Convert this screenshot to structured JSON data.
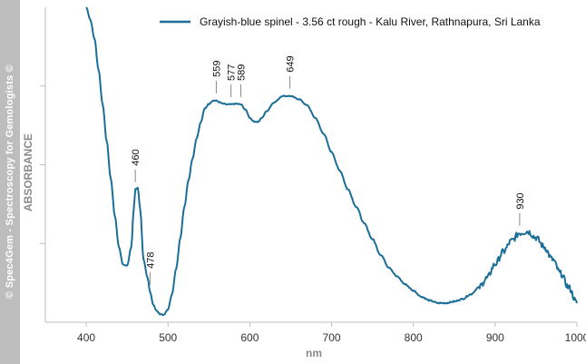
{
  "watermark": "© Spec4Gem - Spectroscopy for Gemologists ©",
  "colors": {
    "series": "#1a6e98",
    "axis": "#bfbfbf",
    "strip": "#bdbdbd"
  },
  "chart_data": {
    "type": "line",
    "xlabel": "nm",
    "ylabel": "ABSORBANCE",
    "xlim": [
      350,
      1000
    ],
    "ylim": [
      0,
      1
    ],
    "xticks": [
      400,
      500,
      600,
      700,
      800,
      900,
      1000
    ],
    "y_tick_labels_shown": false,
    "grid": false,
    "legend_position": "top-right",
    "series": [
      {
        "name": "Grayish-blue spinel - 3.56 ct rough - Kalu River, Rathnapura, Sri Lanka",
        "color": "#1a6e98",
        "x": [
          400,
          405,
          410,
          415,
          420,
          425,
          430,
          435,
          440,
          445,
          450,
          455,
          458,
          460,
          463,
          466,
          470,
          475,
          478,
          482,
          486,
          490,
          495,
          500,
          505,
          510,
          515,
          520,
          525,
          530,
          535,
          540,
          545,
          550,
          555,
          559,
          563,
          567,
          572,
          577,
          583,
          589,
          595,
          600,
          605,
          610,
          615,
          620,
          630,
          640,
          649,
          660,
          670,
          680,
          690,
          700,
          710,
          720,
          730,
          740,
          750,
          760,
          770,
          780,
          790,
          800,
          810,
          820,
          830,
          840,
          850,
          860,
          870,
          880,
          890,
          900,
          910,
          920,
          930,
          940,
          950,
          960,
          970,
          980,
          990,
          1000
        ],
        "y": [
          1.0,
          0.96,
          0.9,
          0.8,
          0.69,
          0.57,
          0.45,
          0.33,
          0.23,
          0.173,
          0.17,
          0.23,
          0.35,
          0.415,
          0.42,
          0.35,
          0.19,
          0.13,
          0.085,
          0.045,
          0.025,
          0.015,
          0.012,
          0.03,
          0.08,
          0.16,
          0.26,
          0.36,
          0.445,
          0.515,
          0.58,
          0.63,
          0.675,
          0.69,
          0.7,
          0.7,
          0.695,
          0.69,
          0.688,
          0.688,
          0.69,
          0.688,
          0.67,
          0.645,
          0.633,
          0.632,
          0.645,
          0.665,
          0.695,
          0.715,
          0.715,
          0.705,
          0.685,
          0.645,
          0.595,
          0.535,
          0.475,
          0.415,
          0.36,
          0.305,
          0.255,
          0.205,
          0.165,
          0.135,
          0.11,
          0.09,
          0.07,
          0.058,
          0.05,
          0.05,
          0.055,
          0.063,
          0.078,
          0.1,
          0.13,
          0.175,
          0.215,
          0.25,
          0.275,
          0.28,
          0.26,
          0.23,
          0.19,
          0.145,
          0.1,
          0.05
        ]
      }
    ],
    "annotations": [
      {
        "x": 460,
        "label": "460",
        "y": 0.415
      },
      {
        "x": 478,
        "label": "478",
        "y": 0.085
      },
      {
        "x": 559,
        "label": "559",
        "y": 0.7
      },
      {
        "x": 577,
        "label": "577",
        "y": 0.688
      },
      {
        "x": 589,
        "label": "589",
        "y": 0.688
      },
      {
        "x": 649,
        "label": "649",
        "y": 0.715
      },
      {
        "x": 930,
        "label": "930",
        "y": 0.275
      }
    ]
  }
}
